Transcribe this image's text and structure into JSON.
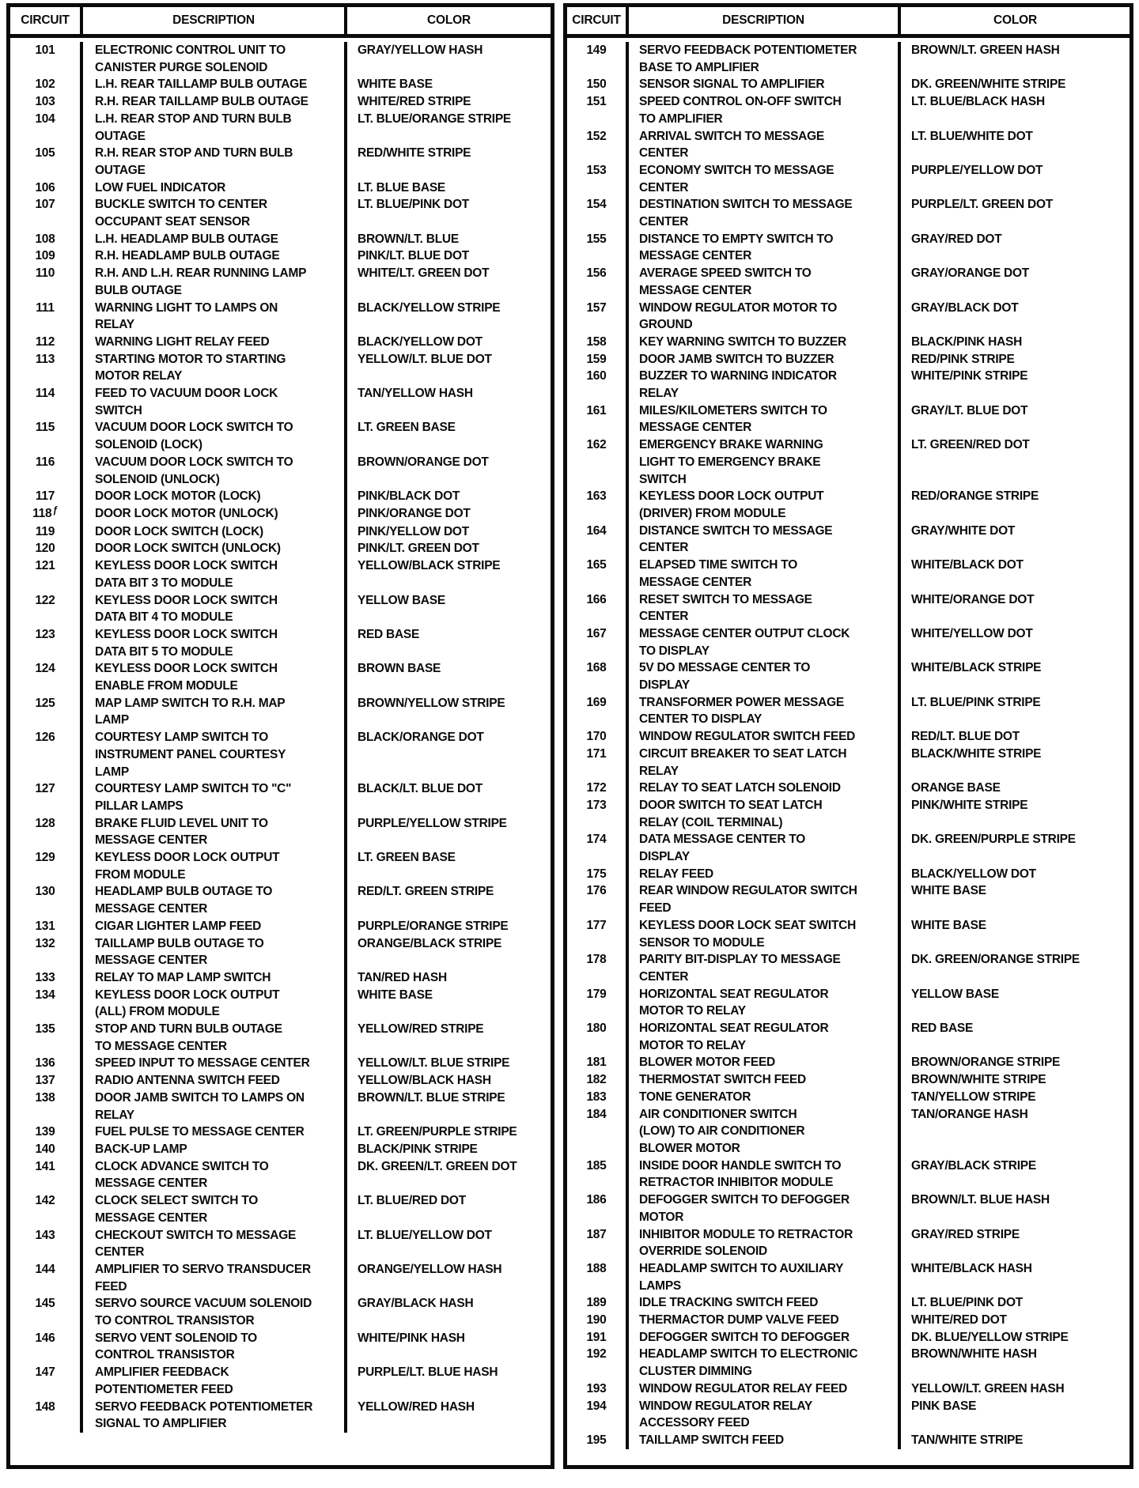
{
  "page": {
    "kind": "scanned wiring circuit color code table",
    "text_color": "#0b0b0b",
    "border_color": "#0a0a0a",
    "background": "#ffffff"
  },
  "tables": [
    {
      "headers": {
        "circuit": "CIRCUIT",
        "description": "DESCRIPTION",
        "color": "COLOR"
      },
      "rows": [
        {
          "circuit": "101",
          "description": [
            "ELECTRONIC CONTROL UNIT TO",
            "CANISTER PURGE SOLENOID"
          ],
          "color": "GRAY/YELLOW HASH"
        },
        {
          "circuit": "102",
          "description": [
            "L.H. REAR TAILLAMP BULB OUTAGE"
          ],
          "color": "WHITE BASE"
        },
        {
          "circuit": "103",
          "description": [
            "R.H. REAR TAILLAMP BULB OUTAGE"
          ],
          "color": "WHITE/RED STRIPE"
        },
        {
          "circuit": "104",
          "description": [
            "L.H. REAR STOP AND TURN BULB",
            "OUTAGE"
          ],
          "color": "LT. BLUE/ORANGE STRIPE"
        },
        {
          "circuit": "105",
          "description": [
            "R.H. REAR STOP AND TURN BULB",
            "OUTAGE"
          ],
          "color": "RED/WHITE STRIPE"
        },
        {
          "circuit": "106",
          "description": [
            "LOW FUEL INDICATOR"
          ],
          "color": "LT. BLUE BASE"
        },
        {
          "circuit": "107",
          "description": [
            "BUCKLE SWITCH TO CENTER",
            "OCCUPANT SEAT SENSOR"
          ],
          "color": "LT. BLUE/PINK DOT"
        },
        {
          "circuit": "108",
          "description": [
            "L.H. HEADLAMP BULB OUTAGE"
          ],
          "color": "BROWN/LT. BLUE"
        },
        {
          "circuit": "109",
          "description": [
            "R.H. HEADLAMP BULB OUTAGE"
          ],
          "color": "PINK/LT. BLUE DOT"
        },
        {
          "circuit": "110",
          "description": [
            "R.H. AND L.H. REAR RUNNING LAMP",
            "BULB OUTAGE"
          ],
          "color": "WHITE/LT. GREEN DOT"
        },
        {
          "circuit": "111",
          "description": [
            "WARNING LIGHT TO LAMPS ON",
            "RELAY"
          ],
          "color": "BLACK/YELLOW STRIPE"
        },
        {
          "circuit": "112",
          "description": [
            "WARNING LIGHT RELAY FEED"
          ],
          "color": "BLACK/YELLOW DOT"
        },
        {
          "circuit": "113",
          "description": [
            "STARTING MOTOR TO STARTING",
            "MOTOR RELAY"
          ],
          "color": "YELLOW/LT. BLUE DOT"
        },
        {
          "circuit": "114",
          "description": [
            "FEED TO VACUUM DOOR LOCK",
            "SWITCH"
          ],
          "color": "TAN/YELLOW HASH"
        },
        {
          "circuit": "115",
          "description": [
            "VACUUM DOOR LOCK SWITCH TO",
            "SOLENOID (LOCK)"
          ],
          "color": "LT. GREEN BASE"
        },
        {
          "circuit": "116",
          "description": [
            "VACUUM DOOR LOCK SWITCH TO",
            "SOLENOID (UNLOCK)"
          ],
          "color": "BROWN/ORANGE DOT"
        },
        {
          "circuit": "117",
          "description": [
            "DOOR LOCK MOTOR (LOCK)"
          ],
          "color": "PINK/BLACK DOT"
        },
        {
          "circuit": "118",
          "mark": "ƒ",
          "description": [
            "DOOR LOCK MOTOR (UNLOCK)"
          ],
          "color": "PINK/ORANGE DOT"
        },
        {
          "circuit": "119",
          "description": [
            "DOOR LOCK SWITCH (LOCK)"
          ],
          "color": "PINK/YELLOW DOT"
        },
        {
          "circuit": "120",
          "description": [
            "DOOR LOCK SWITCH (UNLOCK)"
          ],
          "color": "PINK/LT. GREEN DOT"
        },
        {
          "circuit": "121",
          "description": [
            "KEYLESS DOOR LOCK SWITCH",
            "DATA BIT 3 TO MODULE"
          ],
          "color": "YELLOW/BLACK STRIPE"
        },
        {
          "circuit": "122",
          "description": [
            "KEYLESS DOOR LOCK SWITCH",
            "DATA BIT 4 TO MODULE"
          ],
          "color": "YELLOW BASE"
        },
        {
          "circuit": "123",
          "description": [
            "KEYLESS DOOR LOCK SWITCH",
            "DATA BIT 5 TO MODULE"
          ],
          "color": "RED BASE"
        },
        {
          "circuit": "124",
          "description": [
            "KEYLESS DOOR LOCK SWITCH",
            "ENABLE FROM MODULE"
          ],
          "color": "BROWN BASE"
        },
        {
          "circuit": "125",
          "description": [
            "MAP LAMP SWITCH TO R.H. MAP",
            "LAMP"
          ],
          "color": "BROWN/YELLOW STRIPE"
        },
        {
          "circuit": "126",
          "description": [
            "COURTESY LAMP SWITCH TO",
            "INSTRUMENT PANEL COURTESY",
            "LAMP"
          ],
          "color": "BLACK/ORANGE DOT"
        },
        {
          "circuit": "127",
          "description": [
            "COURTESY LAMP SWITCH TO \"C\"",
            "PILLAR LAMPS"
          ],
          "color": "BLACK/LT. BLUE DOT"
        },
        {
          "circuit": "128",
          "description": [
            "BRAKE FLUID LEVEL UNIT TO",
            "MESSAGE CENTER"
          ],
          "color": "PURPLE/YELLOW STRIPE"
        },
        {
          "circuit": "129",
          "description": [
            "KEYLESS DOOR LOCK OUTPUT",
            "FROM MODULE"
          ],
          "color": "LT. GREEN BASE"
        },
        {
          "circuit": "130",
          "description": [
            "HEADLAMP BULB OUTAGE TO",
            "MESSAGE CENTER"
          ],
          "color": "RED/LT. GREEN STRIPE"
        },
        {
          "circuit": "131",
          "description": [
            "CIGAR LIGHTER LAMP FEED"
          ],
          "color": "PURPLE/ORANGE STRIPE"
        },
        {
          "circuit": "132",
          "description": [
            "TAILLAMP BULB OUTAGE TO",
            "MESSAGE CENTER"
          ],
          "color": "ORANGE/BLACK STRIPE"
        },
        {
          "circuit": "133",
          "description": [
            "RELAY TO MAP LAMP SWITCH"
          ],
          "color": "TAN/RED HASH"
        },
        {
          "circuit": "134",
          "description": [
            "KEYLESS DOOR LOCK OUTPUT",
            "(ALL) FROM MODULE"
          ],
          "color": "WHITE BASE"
        },
        {
          "circuit": "135",
          "description": [
            "STOP AND TURN BULB OUTAGE",
            "TO MESSAGE CENTER"
          ],
          "color": "YELLOW/RED STRIPE"
        },
        {
          "circuit": "136",
          "description": [
            "SPEED INPUT TO MESSAGE CENTER"
          ],
          "color": "YELLOW/LT. BLUE STRIPE"
        },
        {
          "circuit": "137",
          "description": [
            "RADIO ANTENNA SWITCH FEED"
          ],
          "color": "YELLOW/BLACK HASH"
        },
        {
          "circuit": "138",
          "description": [
            "DOOR JAMB SWITCH TO LAMPS ON",
            "RELAY"
          ],
          "color": "BROWN/LT. BLUE STRIPE"
        },
        {
          "circuit": "139",
          "description": [
            "FUEL PULSE TO MESSAGE CENTER"
          ],
          "color": "LT. GREEN/PURPLE STRIPE"
        },
        {
          "circuit": "140",
          "description": [
            "BACK-UP LAMP"
          ],
          "color": "BLACK/PINK STRIPE"
        },
        {
          "circuit": "141",
          "description": [
            "CLOCK ADVANCE SWITCH TO",
            "MESSAGE CENTER"
          ],
          "color": "DK. GREEN/LT. GREEN DOT"
        },
        {
          "circuit": "142",
          "description": [
            "CLOCK SELECT SWITCH TO",
            "MESSAGE CENTER"
          ],
          "color": "LT. BLUE/RED DOT"
        },
        {
          "circuit": "143",
          "description": [
            "CHECKOUT SWITCH TO MESSAGE",
            "CENTER"
          ],
          "color": "LT. BLUE/YELLOW DOT"
        },
        {
          "circuit": "144",
          "description": [
            "AMPLIFIER TO SERVO TRANSDUCER",
            "FEED"
          ],
          "color": "ORANGE/YELLOW HASH"
        },
        {
          "circuit": "145",
          "description": [
            "SERVO SOURCE VACUUM SOLENOID",
            "TO CONTROL TRANSISTOR"
          ],
          "color": "GRAY/BLACK HASH"
        },
        {
          "circuit": "146",
          "description": [
            "SERVO VENT SOLENOID TO",
            "CONTROL TRANSISTOR"
          ],
          "color": "WHITE/PINK HASH"
        },
        {
          "circuit": "147",
          "description": [
            "AMPLIFIER FEEDBACK",
            "POTENTIOMETER FEED"
          ],
          "color": "PURPLE/LT. BLUE HASH"
        },
        {
          "circuit": "148",
          "description": [
            "SERVO FEEDBACK POTENTIOMETER",
            "SIGNAL TO AMPLIFIER"
          ],
          "color": "YELLOW/RED HASH"
        }
      ]
    },
    {
      "headers": {
        "circuit": "CIRCUIT",
        "description": "DESCRIPTION",
        "color": "COLOR"
      },
      "rows": [
        {
          "circuit": "149",
          "description": [
            "SERVO FEEDBACK POTENTIOMETER",
            "BASE TO AMPLIFIER"
          ],
          "color": "BROWN/LT. GREEN HASH"
        },
        {
          "circuit": "150",
          "description": [
            "SENSOR SIGNAL TO AMPLIFIER"
          ],
          "color": "DK. GREEN/WHITE STRIPE"
        },
        {
          "circuit": "151",
          "description": [
            "SPEED CONTROL ON-OFF SWITCH",
            "TO AMPLIFIER"
          ],
          "color": "LT. BLUE/BLACK HASH"
        },
        {
          "circuit": "152",
          "description": [
            "ARRIVAL SWITCH TO MESSAGE",
            "CENTER"
          ],
          "color": "LT. BLUE/WHITE DOT"
        },
        {
          "circuit": "153",
          "description": [
            "ECONOMY SWITCH TO MESSAGE",
            "CENTER"
          ],
          "color": "PURPLE/YELLOW DOT"
        },
        {
          "circuit": "154",
          "description": [
            "DESTINATION SWITCH TO MESSAGE",
            "CENTER"
          ],
          "color": "PURPLE/LT. GREEN DOT"
        },
        {
          "circuit": "155",
          "description": [
            "DISTANCE TO EMPTY SWITCH TO",
            "MESSAGE CENTER"
          ],
          "color": "GRAY/RED DOT"
        },
        {
          "circuit": "156",
          "description": [
            "AVERAGE SPEED SWITCH TO",
            "MESSAGE CENTER"
          ],
          "color": "GRAY/ORANGE DOT"
        },
        {
          "circuit": "157",
          "description": [
            "WINDOW REGULATOR MOTOR TO",
            "GROUND"
          ],
          "color": "GRAY/BLACK DOT"
        },
        {
          "circuit": "158",
          "description": [
            "KEY WARNING SWITCH TO BUZZER"
          ],
          "color": "BLACK/PINK HASH"
        },
        {
          "circuit": "159",
          "description": [
            "DOOR JAMB SWITCH TO BUZZER"
          ],
          "color": "RED/PINK STRIPE"
        },
        {
          "circuit": "160",
          "description": [
            "BUZZER TO WARNING INDICATOR",
            "RELAY"
          ],
          "color": "WHITE/PINK STRIPE"
        },
        {
          "circuit": "161",
          "description": [
            "MILES/KILOMETERS SWITCH TO",
            "MESSAGE CENTER"
          ],
          "color": "GRAY/LT. BLUE DOT"
        },
        {
          "circuit": "162",
          "description": [
            "EMERGENCY BRAKE WARNING",
            "LIGHT TO EMERGENCY BRAKE",
            "SWITCH"
          ],
          "color": "LT. GREEN/RED DOT"
        },
        {
          "circuit": "163",
          "description": [
            "KEYLESS DOOR LOCK OUTPUT",
            "(DRIVER) FROM MODULE"
          ],
          "color": "RED/ORANGE STRIPE"
        },
        {
          "circuit": "164",
          "description": [
            "DISTANCE SWITCH TO MESSAGE",
            "CENTER"
          ],
          "color": "GRAY/WHITE DOT"
        },
        {
          "circuit": "165",
          "description": [
            "ELAPSED TIME SWITCH TO",
            "MESSAGE CENTER"
          ],
          "color": "WHITE/BLACK DOT"
        },
        {
          "circuit": "166",
          "description": [
            "RESET SWITCH TO MESSAGE",
            "CENTER"
          ],
          "color": "WHITE/ORANGE DOT"
        },
        {
          "circuit": "167",
          "description": [
            "MESSAGE CENTER OUTPUT CLOCK",
            "TO DISPLAY"
          ],
          "color": "WHITE/YELLOW DOT"
        },
        {
          "circuit": "168",
          "description": [
            "5V DO MESSAGE CENTER TO",
            "DISPLAY"
          ],
          "color": "WHITE/BLACK STRIPE"
        },
        {
          "circuit": "169",
          "description": [
            "TRANSFORMER POWER MESSAGE",
            "CENTER TO DISPLAY"
          ],
          "color": "LT. BLUE/PINK STRIPE"
        },
        {
          "circuit": "170",
          "description": [
            "WINDOW REGULATOR SWITCH FEED"
          ],
          "color": "RED/LT. BLUE DOT"
        },
        {
          "circuit": "171",
          "description": [
            "CIRCUIT BREAKER TO SEAT LATCH",
            "RELAY"
          ],
          "color": "BLACK/WHITE STRIPE"
        },
        {
          "circuit": "172",
          "description": [
            "RELAY TO SEAT LATCH SOLENOID"
          ],
          "color": "ORANGE BASE"
        },
        {
          "circuit": "173",
          "description": [
            "DOOR SWITCH TO SEAT LATCH",
            "RELAY (COIL TERMINAL)"
          ],
          "color": "PINK/WHITE STRIPE"
        },
        {
          "circuit": "174",
          "description": [
            "DATA MESSAGE CENTER TO",
            "DISPLAY"
          ],
          "color": "DK. GREEN/PURPLE STRIPE"
        },
        {
          "circuit": "175",
          "description": [
            "RELAY FEED"
          ],
          "color": "BLACK/YELLOW DOT"
        },
        {
          "circuit": "176",
          "description": [
            "REAR WINDOW REGULATOR SWITCH",
            "FEED"
          ],
          "color": "WHITE BASE"
        },
        {
          "circuit": "177",
          "description": [
            "KEYLESS DOOR LOCK SEAT SWITCH",
            "SENSOR TO MODULE"
          ],
          "color": "WHITE BASE"
        },
        {
          "circuit": "178",
          "description": [
            "PARITY BIT-DISPLAY TO MESSAGE",
            "CENTER"
          ],
          "color": "DK. GREEN/ORANGE STRIPE"
        },
        {
          "circuit": "179",
          "description": [
            "HORIZONTAL SEAT REGULATOR",
            "MOTOR TO RELAY"
          ],
          "color": "YELLOW BASE"
        },
        {
          "circuit": "180",
          "description": [
            "HORIZONTAL SEAT REGULATOR",
            "MOTOR TO RELAY"
          ],
          "color": "RED BASE"
        },
        {
          "circuit": "181",
          "description": [
            "BLOWER MOTOR FEED"
          ],
          "color": "BROWN/ORANGE STRIPE"
        },
        {
          "circuit": "182",
          "description": [
            "THERMOSTAT SWITCH FEED"
          ],
          "color": "BROWN/WHITE STRIPE"
        },
        {
          "circuit": "183",
          "description": [
            "TONE GENERATOR"
          ],
          "color": "TAN/YELLOW STRIPE"
        },
        {
          "circuit": "184",
          "description": [
            "AIR CONDITIONER SWITCH",
            "(LOW) TO AIR CONDITIONER",
            "BLOWER MOTOR"
          ],
          "color": "TAN/ORANGE HASH"
        },
        {
          "circuit": "185",
          "description": [
            "INSIDE DOOR HANDLE SWITCH TO",
            "RETRACTOR INHIBITOR MODULE"
          ],
          "color": "GRAY/BLACK STRIPE"
        },
        {
          "circuit": "186",
          "description": [
            "DEFOGGER SWITCH TO DEFOGGER",
            "MOTOR"
          ],
          "color": "BROWN/LT. BLUE HASH"
        },
        {
          "circuit": "187",
          "description": [
            "INHIBITOR MODULE TO RETRACTOR",
            "OVERRIDE SOLENOID"
          ],
          "color": "GRAY/RED STRIPE"
        },
        {
          "circuit": "188",
          "description": [
            "HEADLAMP SWITCH TO AUXILIARY",
            "LAMPS"
          ],
          "color": "WHITE/BLACK HASH"
        },
        {
          "circuit": "189",
          "description": [
            "IDLE TRACKING SWITCH FEED"
          ],
          "color": "LT. BLUE/PINK DOT"
        },
        {
          "circuit": "190",
          "description": [
            "THERMACTOR DUMP VALVE FEED"
          ],
          "color": "WHITE/RED DOT"
        },
        {
          "circuit": "191",
          "description": [
            "DEFOGGER SWITCH TO DEFOGGER"
          ],
          "color": "DK. BLUE/YELLOW STRIPE"
        },
        {
          "circuit": "192",
          "description": [
            "HEADLAMP SWITCH TO ELECTRONIC",
            "CLUSTER DIMMING"
          ],
          "color": "BROWN/WHITE HASH"
        },
        {
          "circuit": "193",
          "description": [
            "WINDOW REGULATOR RELAY FEED"
          ],
          "color": "YELLOW/LT. GREEN HASH"
        },
        {
          "circuit": "194",
          "description": [
            "WINDOW REGULATOR RELAY",
            "ACCESSORY FEED"
          ],
          "color": "PINK BASE"
        },
        {
          "circuit": "195",
          "description": [
            "TAILLAMP SWITCH FEED"
          ],
          "color": "TAN/WHITE STRIPE"
        }
      ]
    }
  ]
}
